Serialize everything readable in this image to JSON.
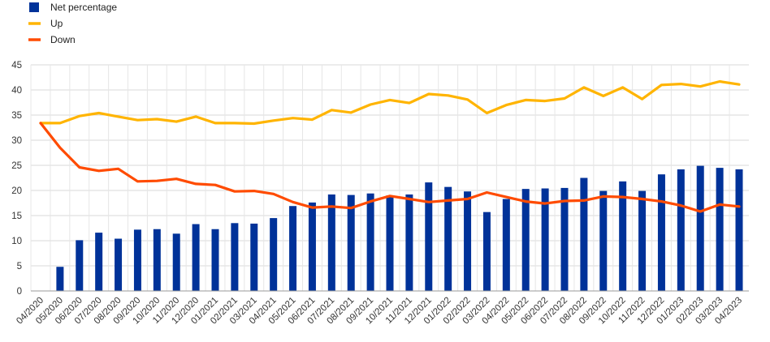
{
  "chart_data": {
    "type": "bar",
    "categories": [
      "04/2020",
      "05/2020",
      "06/2020",
      "07/2020",
      "08/2020",
      "09/2020",
      "10/2020",
      "11/2020",
      "12/2020",
      "01/2021",
      "02/2021",
      "03/2021",
      "04/2021",
      "05/2021",
      "06/2021",
      "07/2021",
      "08/2021",
      "09/2021",
      "10/2021",
      "11/2021",
      "12/2021",
      "01/2022",
      "02/2022",
      "03/2022",
      "04/2022",
      "05/2022",
      "06/2022",
      "07/2022",
      "08/2022",
      "09/2022",
      "10/2022",
      "11/2022",
      "12/2022",
      "01/2023",
      "02/2023",
      "03/2023",
      "04/2023"
    ],
    "series": [
      {
        "name": "Net percentage",
        "type": "bar",
        "color": "#003299",
        "values": [
          null,
          4.8,
          10.1,
          11.6,
          10.4,
          12.2,
          12.3,
          11.4,
          13.3,
          12.3,
          13.5,
          13.4,
          14.5,
          16.9,
          17.6,
          19.2,
          19.1,
          19.4,
          19.0,
          19.2,
          21.6,
          20.7,
          19.8,
          15.7,
          18.3,
          20.3,
          20.4,
          20.5,
          22.5,
          19.9,
          21.8,
          19.9,
          23.2,
          24.2,
          24.9,
          24.5,
          24.2
        ]
      },
      {
        "name": "Up",
        "type": "line",
        "color": "#FFB400",
        "values": [
          33.4,
          33.4,
          34.8,
          35.4,
          34.7,
          34.0,
          34.2,
          33.7,
          34.7,
          33.4,
          33.4,
          33.3,
          33.9,
          34.4,
          34.1,
          36.0,
          35.5,
          37.1,
          38.0,
          37.4,
          39.2,
          38.9,
          38.1,
          35.4,
          37.0,
          38.0,
          37.8,
          38.3,
          40.5,
          38.8,
          40.5,
          38.2,
          41.0,
          41.2,
          40.7,
          41.7,
          41.1
        ]
      },
      {
        "name": "Down",
        "type": "line",
        "color": "#FF4B00",
        "values": [
          33.4,
          28.5,
          24.6,
          23.9,
          24.3,
          21.8,
          21.9,
          22.3,
          21.3,
          21.1,
          19.8,
          19.9,
          19.3,
          17.7,
          16.6,
          16.8,
          16.5,
          17.8,
          18.9,
          18.3,
          17.7,
          18.0,
          18.3,
          19.6,
          18.7,
          17.8,
          17.4,
          17.9,
          18.0,
          18.8,
          18.7,
          18.3,
          17.8,
          17.0,
          15.8,
          17.2,
          16.8
        ]
      }
    ],
    "ylim": [
      0,
      45
    ],
    "yticks": [
      0,
      5,
      10,
      15,
      20,
      25,
      30,
      35,
      40,
      45
    ],
    "grid": true,
    "legend": "top-left",
    "title": "",
    "xlabel": "",
    "ylabel": ""
  }
}
